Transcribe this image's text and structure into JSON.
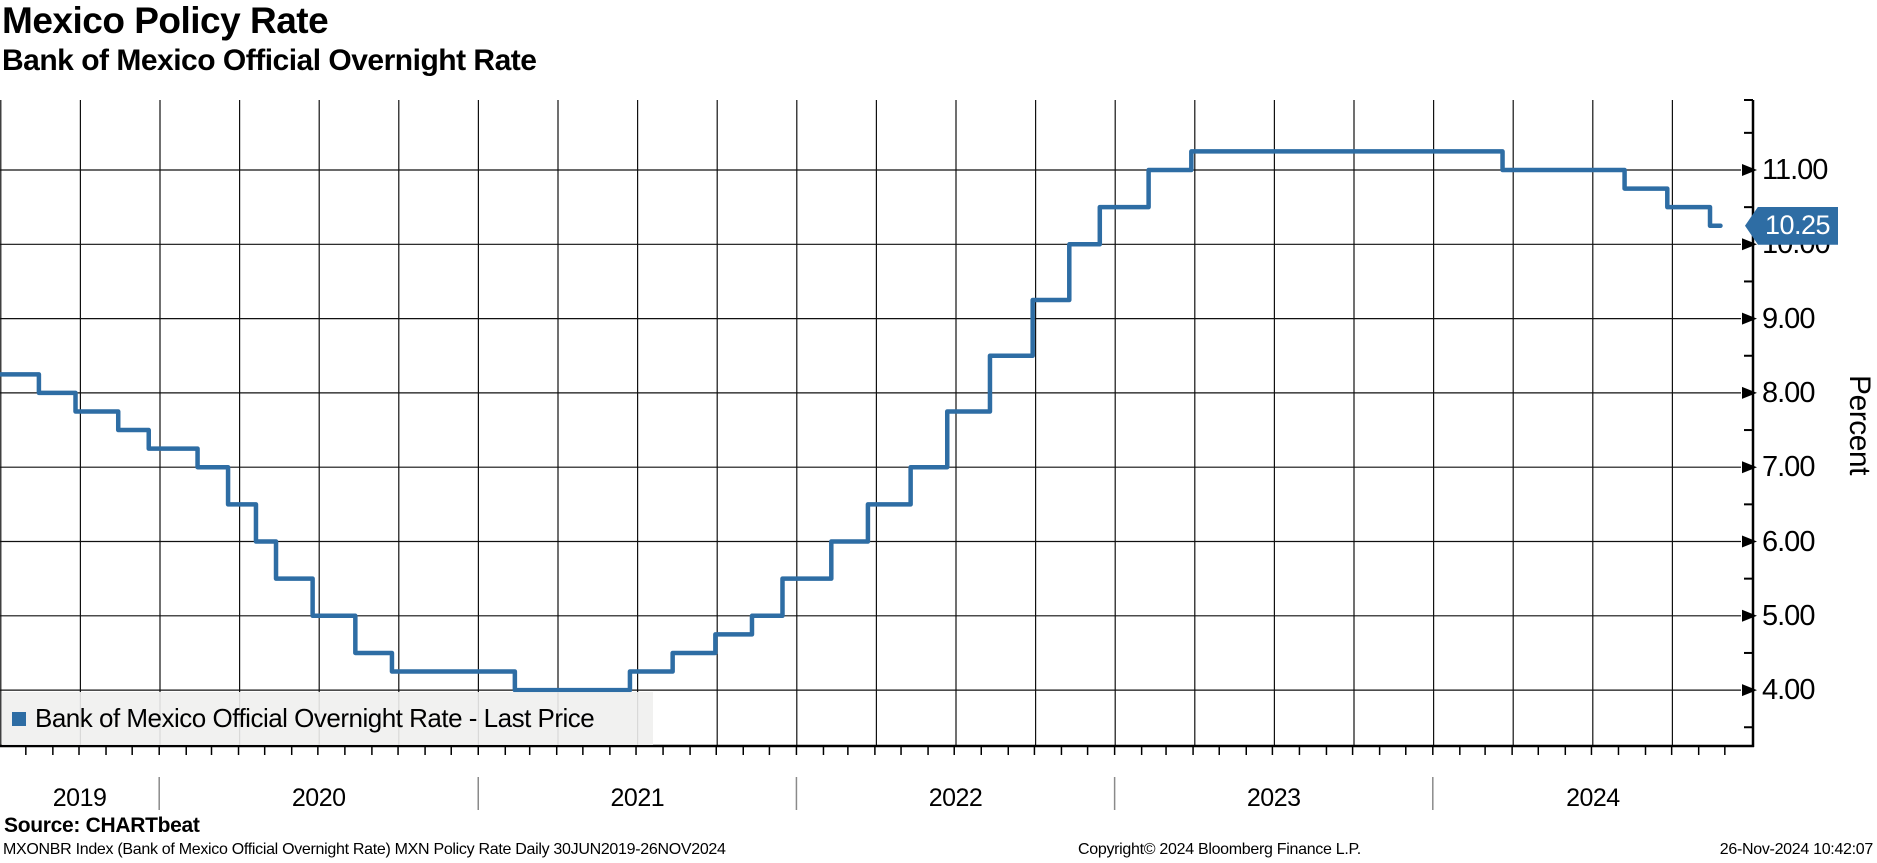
{
  "header": {
    "title": "Mexico Policy Rate",
    "subtitle": "Bank of Mexico Official Overnight Rate"
  },
  "legend": {
    "label": "Bank of Mexico Official Overnight Rate - Last Price",
    "marker_color": "#2e6da4"
  },
  "badge": {
    "value": "10.25",
    "bg_color": "#2e6da4",
    "border_color": "#1b4a77",
    "text_color": "#ffffff"
  },
  "axis": {
    "y_label": "Percent",
    "y_ticks": [
      {
        "value": 11,
        "label": "11.00"
      },
      {
        "value": 10,
        "label": "10.00"
      },
      {
        "value": 9,
        "label": "9.00"
      },
      {
        "value": 8,
        "label": "8.00"
      },
      {
        "value": 7,
        "label": "7.00"
      },
      {
        "value": 6,
        "label": "6.00"
      },
      {
        "value": 5,
        "label": "5.00"
      },
      {
        "value": 4,
        "label": "4.00"
      }
    ],
    "x_tick_years": [
      "2019",
      "2020",
      "2021",
      "2022",
      "2023",
      "2024"
    ]
  },
  "footer": {
    "source": "Source: CHARTbeat",
    "security": "MXONBR Index (Bank of Mexico Official Overnight Rate) MXN Policy Rate  Daily 30JUN2019-26NOV2024",
    "copyright": "Copyright© 2024 Bloomberg Finance L.P.",
    "datetime": "26-Nov-2024 10:42:07"
  },
  "chart_data": {
    "type": "line",
    "step": true,
    "title": "Mexico Policy Rate",
    "subtitle": "Bank of Mexico Official Overnight Rate",
    "ylabel": "Percent",
    "ylim": [
      3.25,
      11.95
    ],
    "y_major_step": 1.0,
    "y_minor_step": 0.5,
    "x_range": [
      "2019-06-30",
      "2025-01-01"
    ],
    "period": "30JUN2019-26NOV2024",
    "grid": true,
    "legend_position": "bottom-left",
    "line_color": "#2e6da4",
    "grid_color": "#111111",
    "last_price": 10.25,
    "series": [
      {
        "name": "Bank of Mexico Official Overnight Rate - Last Price",
        "color": "#2e6da4",
        "points": [
          {
            "date": "2019-06-30",
            "value": 8.25
          },
          {
            "date": "2019-08-16",
            "value": 8.0
          },
          {
            "date": "2019-09-27",
            "value": 7.75
          },
          {
            "date": "2019-11-15",
            "value": 7.5
          },
          {
            "date": "2019-12-20",
            "value": 7.25
          },
          {
            "date": "2020-02-14",
            "value": 7.0
          },
          {
            "date": "2020-03-20",
            "value": 6.5
          },
          {
            "date": "2020-04-21",
            "value": 6.0
          },
          {
            "date": "2020-05-14",
            "value": 5.5
          },
          {
            "date": "2020-06-25",
            "value": 5.0
          },
          {
            "date": "2020-08-13",
            "value": 4.5
          },
          {
            "date": "2020-09-24",
            "value": 4.25
          },
          {
            "date": "2021-02-12",
            "value": 4.0
          },
          {
            "date": "2021-06-24",
            "value": 4.25
          },
          {
            "date": "2021-08-12",
            "value": 4.5
          },
          {
            "date": "2021-09-30",
            "value": 4.75
          },
          {
            "date": "2021-11-11",
            "value": 5.0
          },
          {
            "date": "2021-12-16",
            "value": 5.5
          },
          {
            "date": "2022-02-10",
            "value": 6.0
          },
          {
            "date": "2022-03-24",
            "value": 6.5
          },
          {
            "date": "2022-05-12",
            "value": 7.0
          },
          {
            "date": "2022-06-23",
            "value": 7.75
          },
          {
            "date": "2022-08-11",
            "value": 8.5
          },
          {
            "date": "2022-09-29",
            "value": 9.25
          },
          {
            "date": "2022-11-10",
            "value": 10.0
          },
          {
            "date": "2022-12-15",
            "value": 10.5
          },
          {
            "date": "2023-02-09",
            "value": 11.0
          },
          {
            "date": "2023-03-30",
            "value": 11.25
          },
          {
            "date": "2024-03-21",
            "value": 11.0
          },
          {
            "date": "2024-08-08",
            "value": 10.75
          },
          {
            "date": "2024-09-26",
            "value": 10.5
          },
          {
            "date": "2024-11-14",
            "value": 10.25
          },
          {
            "date": "2024-11-26",
            "value": 10.25
          }
        ]
      }
    ]
  }
}
